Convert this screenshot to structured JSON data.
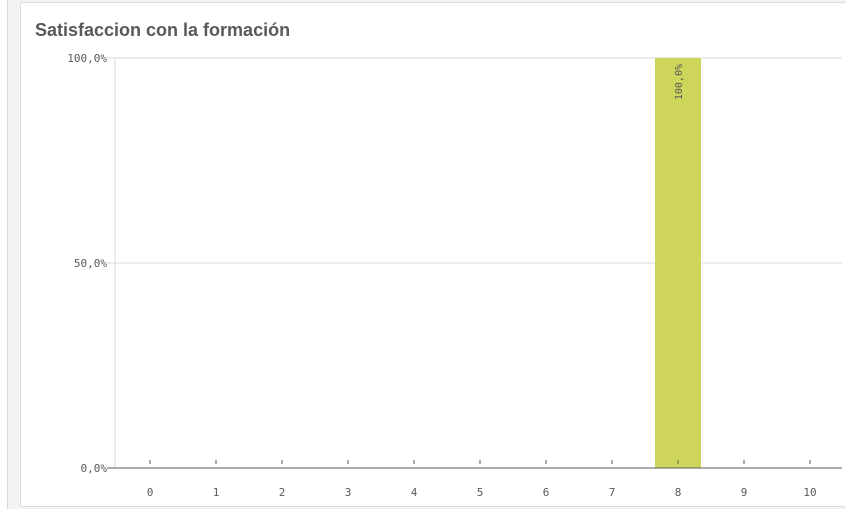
{
  "chart_data": {
    "type": "bar",
    "title": "Satisfaccion con la formación",
    "categories": [
      "0",
      "1",
      "2",
      "3",
      "4",
      "5",
      "6",
      "7",
      "8",
      "9",
      "10"
    ],
    "values": [
      0,
      0,
      0,
      0,
      0,
      0,
      0,
      0,
      1.0,
      0,
      0
    ],
    "data_labels": [
      "",
      "",
      "",
      "",
      "",
      "",
      "",
      "",
      "100,0%",
      "",
      ""
    ],
    "ylim": [
      0,
      1
    ],
    "y_ticks": [
      {
        "value": 0,
        "label": "0,0%"
      },
      {
        "value": 0.5,
        "label": "50,0%"
      },
      {
        "value": 1.0,
        "label": "100,0%"
      }
    ],
    "grid": true,
    "bar_color": "#cdd65a",
    "grid_color": "#d9d9d9",
    "axis_color": "#595959"
  }
}
